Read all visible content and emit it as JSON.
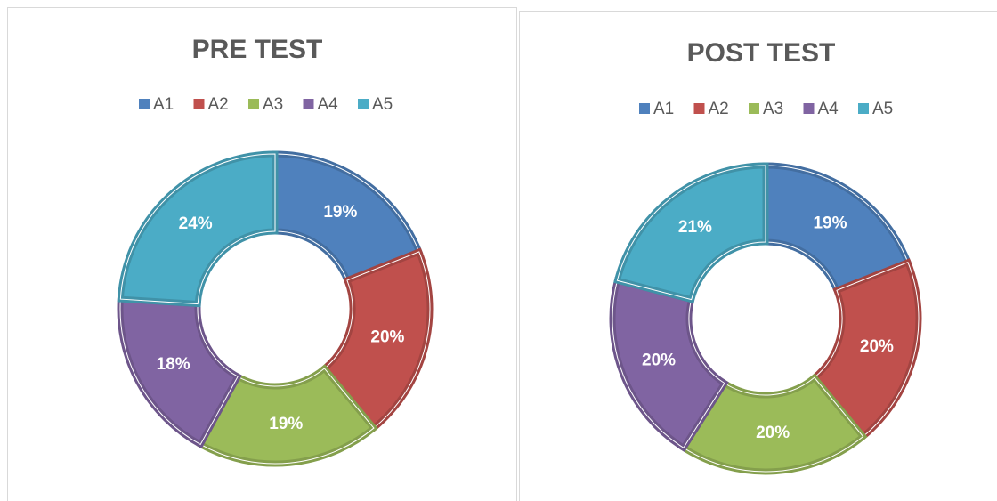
{
  "chart_data": [
    {
      "type": "donut",
      "title": "PRE TEST",
      "categories": [
        "A1",
        "A2",
        "A3",
        "A4",
        "A5"
      ],
      "values": [
        19,
        20,
        19,
        18,
        24
      ],
      "value_labels": [
        "19%",
        "20%",
        "19%",
        "18%",
        "24%"
      ],
      "colors": [
        "#4f81bd",
        "#c0504d",
        "#9bbb59",
        "#8064a2",
        "#4bacc6"
      ],
      "legend": "top"
    },
    {
      "type": "donut",
      "title": "POST TEST",
      "categories": [
        "A1",
        "A2",
        "A3",
        "A4",
        "A5"
      ],
      "values": [
        19,
        20,
        20,
        20,
        21
      ],
      "value_labels": [
        "19%",
        "20%",
        "20%",
        "20%",
        "21%"
      ],
      "colors": [
        "#4f81bd",
        "#c0504d",
        "#9bbb59",
        "#8064a2",
        "#4bacc6"
      ],
      "legend": "top"
    }
  ]
}
